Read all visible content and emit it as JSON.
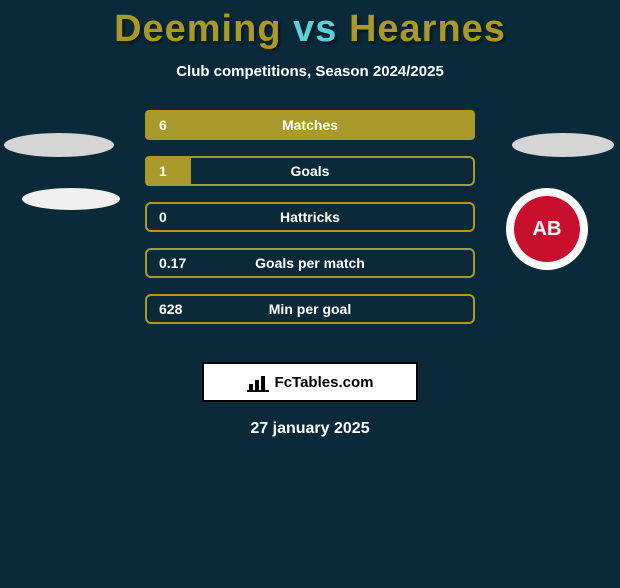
{
  "title": {
    "player1": "Deeming",
    "vs": "vs",
    "player2": "Hearnes",
    "player1_color": "#a8992a",
    "vs_color": "#5fcfd8",
    "player2_color": "#a8992a"
  },
  "subtitle": "Club competitions, Season 2024/2025",
  "background_color": "#0a2a3a",
  "bars": [
    {
      "label": "Matches",
      "value": "6",
      "fill_pct": 100,
      "fill_color": "#a8992a",
      "border_color": "#a8992a"
    },
    {
      "label": "Goals",
      "value": "1",
      "fill_pct": 14,
      "fill_color": "#a8992a",
      "border_color": "#a8992a"
    },
    {
      "label": "Hattricks",
      "value": "0",
      "fill_pct": 0,
      "fill_color": "#a8992a",
      "border_color": "#a8992a"
    },
    {
      "label": "Goals per match",
      "value": "0.17",
      "fill_pct": 0,
      "fill_color": "#a8992a",
      "border_color": "#a8992a"
    },
    {
      "label": "Min per goal",
      "value": "628",
      "fill_pct": 0,
      "fill_color": "#a8992a",
      "border_color": "#a8992a"
    }
  ],
  "club_badge": {
    "bg": "#ffffff",
    "inner_bg": "#c8102e",
    "text": "AB",
    "text_color": "#ffffff"
  },
  "brand": "FcTables.com",
  "date": "27 january 2025"
}
